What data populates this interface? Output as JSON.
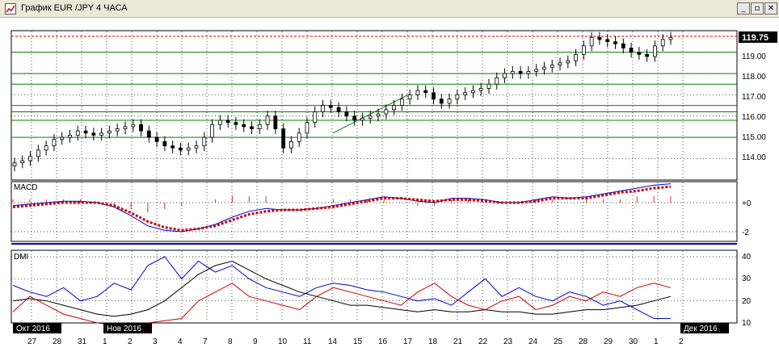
{
  "window": {
    "title": "График EUR /JPY  4 ЧАСА",
    "minimize_icon": "minimize-icon",
    "restore_icon": "restore-icon",
    "close_icon": "close-icon"
  },
  "price_panel": {
    "current_price_label": "119.75",
    "y_ticks": [
      "119.00",
      "118.00",
      "117.00",
      "116.00",
      "115.00",
      "114.00"
    ]
  },
  "macd_panel": {
    "label": "MACD",
    "y_ticks": [
      "+0",
      "-2"
    ]
  },
  "dmi_panel": {
    "label": "DMI",
    "y_ticks": [
      "40",
      "30",
      "20",
      "10"
    ]
  },
  "x_axis": {
    "month_labels": [
      "Окт 2016",
      "Нов 2016",
      "Дек 2016"
    ],
    "day_labels": [
      "27",
      "28",
      "31",
      "1",
      "2",
      "3",
      "4",
      "7",
      "8",
      "9",
      "10",
      "11",
      "14",
      "15",
      "16",
      "17",
      "18",
      "21",
      "22",
      "23",
      "24",
      "25",
      "28",
      "29",
      "30",
      "1",
      "2"
    ]
  },
  "colors": {
    "grid": "#000000",
    "support_lines": "#008000",
    "resistance_line": "#cc0000",
    "macd_line": "#0000cc",
    "signal_line": "#cc0000",
    "dmi_plus": "#0000cc",
    "dmi_minus": "#cc0000",
    "adx": "#000000"
  },
  "chart_data": {
    "type": "line",
    "price_levels": {
      "resistance": 119.75,
      "supports": [
        119.0,
        118.0,
        117.5,
        116.5,
        116.2,
        115.8,
        115.0
      ]
    },
    "candles_close": [
      113.8,
      113.9,
      114.1,
      114.4,
      114.6,
      114.9,
      115.0,
      115.1,
      115.3,
      115.2,
      115.1,
      115.2,
      115.3,
      115.4,
      115.5,
      115.6,
      115.3,
      115.0,
      114.8,
      114.6,
      114.5,
      114.4,
      114.5,
      114.6,
      115.0,
      115.6,
      115.8,
      115.7,
      115.6,
      115.5,
      115.4,
      115.6,
      116.0,
      115.4,
      114.5,
      114.8,
      115.2,
      115.7,
      116.2,
      116.5,
      116.4,
      116.2,
      116.0,
      115.8,
      115.9,
      116.0,
      116.1,
      116.3,
      116.5,
      116.8,
      117.0,
      117.2,
      117.1,
      116.8,
      116.6,
      116.8,
      117.0,
      117.1,
      117.2,
      117.3,
      117.5,
      117.8,
      118.0,
      118.1,
      118.0,
      118.1,
      118.2,
      118.3,
      118.4,
      118.5,
      118.6,
      118.9,
      119.3,
      119.7,
      119.6,
      119.5,
      119.4,
      119.2,
      119.0,
      118.9,
      118.8,
      119.3,
      119.6,
      119.7
    ],
    "macd": [
      -0.2,
      -0.1,
      0.0,
      0.1,
      0.1,
      0.0,
      -0.3,
      -0.9,
      -1.6,
      -1.9,
      -2.0,
      -1.8,
      -1.5,
      -1.0,
      -0.6,
      -0.4,
      -0.5,
      -0.5,
      -0.4,
      -0.2,
      0.0,
      0.2,
      0.4,
      0.3,
      0.1,
      0.0,
      0.3,
      0.3,
      0.2,
      0.0,
      0.0,
      0.2,
      0.4,
      0.3,
      0.4,
      0.6,
      0.8,
      1.0,
      1.2,
      1.3
    ],
    "signal": [
      -0.3,
      -0.2,
      -0.1,
      0.0,
      0.0,
      0.0,
      -0.2,
      -0.7,
      -1.3,
      -1.7,
      -1.9,
      -1.8,
      -1.6,
      -1.2,
      -0.8,
      -0.6,
      -0.5,
      -0.5,
      -0.4,
      -0.3,
      -0.1,
      0.1,
      0.3,
      0.3,
      0.2,
      0.1,
      0.2,
      0.2,
      0.1,
      0.0,
      0.0,
      0.1,
      0.3,
      0.3,
      0.3,
      0.5,
      0.7,
      0.8,
      1.0,
      1.1
    ],
    "dmi_plus": [
      27,
      24,
      22,
      26,
      20,
      22,
      28,
      25,
      36,
      40,
      30,
      38,
      33,
      36,
      30,
      26,
      24,
      22,
      26,
      28,
      27,
      25,
      24,
      22,
      20,
      21,
      18,
      24,
      30,
      22,
      26,
      22,
      20,
      24,
      22,
      18,
      20,
      16,
      12,
      12
    ],
    "dmi_minus": [
      15,
      22,
      18,
      14,
      12,
      10,
      9,
      8,
      10,
      11,
      12,
      20,
      24,
      28,
      22,
      20,
      18,
      16,
      22,
      26,
      24,
      22,
      20,
      18,
      24,
      28,
      22,
      18,
      16,
      20,
      22,
      16,
      18,
      22,
      20,
      24,
      22,
      26,
      28,
      26
    ],
    "adx": [
      20,
      21,
      20,
      18,
      16,
      14,
      13,
      14,
      16,
      20,
      26,
      32,
      36,
      38,
      34,
      30,
      27,
      24,
      22,
      20,
      18,
      18,
      17,
      16,
      15,
      16,
      15,
      15,
      16,
      15,
      15,
      14,
      14,
      15,
      16,
      16,
      17,
      18,
      20,
      22
    ],
    "xlabel": "",
    "ylabel": ""
  }
}
